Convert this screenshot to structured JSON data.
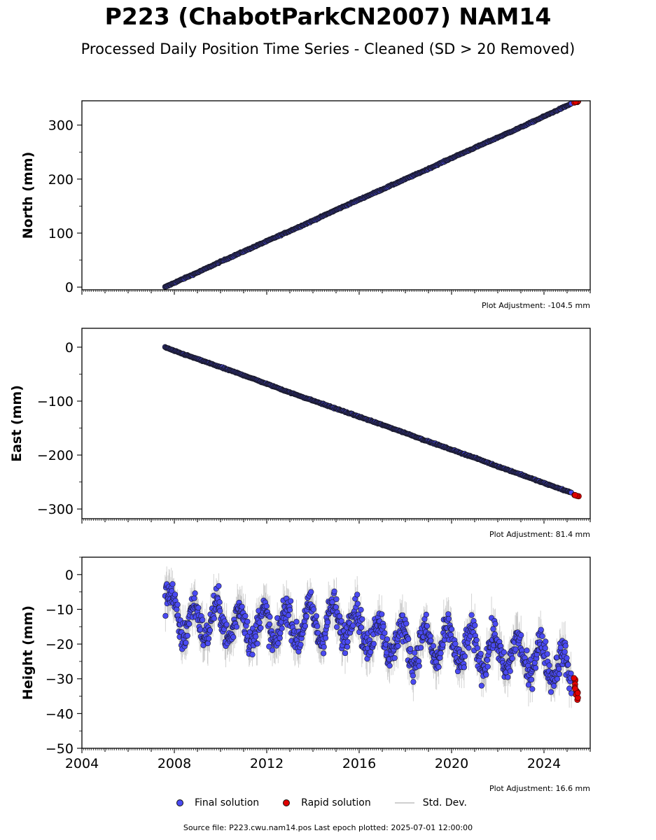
{
  "title": "P223 (ChabotParkCN2007) NAM14",
  "subtitle": "Processed Daily Position Time Series - Cleaned (SD > 20 Removed)",
  "legend": {
    "final": "Final solution",
    "rapid": "Rapid solution",
    "std": "Std. Dev."
  },
  "source_text": "Source file: P223.cwu.nam14.pos  Last epoch plotted: 2025-07-01 12:00:00",
  "colors": {
    "final": "#4a4af2",
    "rapid": "#e00000",
    "std": "#b0b0b0",
    "edge": "#1a1a2a"
  },
  "chart_data": [
    {
      "type": "scatter",
      "ylabel": "North (mm)",
      "xlim": [
        2004.0,
        2026.0
      ],
      "ylim": [
        -5,
        345
      ],
      "yticks": [
        "0",
        "100",
        "200",
        "300"
      ],
      "adjustment": "Plot Adjustment: -104.5 mm",
      "series": [
        {
          "name": "Final solution",
          "x": [
            2007.6,
            2008.0,
            2009.0,
            2010.0,
            2011.0,
            2012.0,
            2013.0,
            2014.0,
            2015.0,
            2016.0,
            2017.0,
            2018.0,
            2019.0,
            2020.0,
            2021.0,
            2022.0,
            2023.0,
            2024.0,
            2025.2
          ],
          "y": [
            0,
            8,
            27,
            47,
            66,
            85,
            104,
            123,
            143,
            162,
            181,
            200,
            219,
            239,
            258,
            277,
            296,
            316,
            340
          ]
        },
        {
          "name": "Rapid solution",
          "x": [
            2025.3,
            2025.4,
            2025.5
          ],
          "y": [
            342,
            343,
            344
          ]
        }
      ]
    },
    {
      "type": "scatter",
      "ylabel": "East (mm)",
      "xlim": [
        2004.0,
        2026.0
      ],
      "ylim": [
        -318,
        35
      ],
      "yticks": [
        "0",
        "−100",
        "−200",
        "−300"
      ],
      "adjustment": "Plot Adjustment: 81.4 mm",
      "series": [
        {
          "name": "Final solution",
          "x": [
            2007.6,
            2008.0,
            2009.0,
            2010.0,
            2011.0,
            2012.0,
            2013.0,
            2014.0,
            2015.0,
            2016.0,
            2017.0,
            2018.0,
            2019.0,
            2020.0,
            2021.0,
            2022.0,
            2023.0,
            2024.0,
            2025.2
          ],
          "y": [
            0,
            -7,
            -22,
            -37,
            -52,
            -68,
            -84,
            -99,
            -114,
            -129,
            -144,
            -159,
            -175,
            -190,
            -205,
            -221,
            -236,
            -252,
            -270
          ]
        },
        {
          "name": "Rapid solution",
          "x": [
            2025.3,
            2025.4,
            2025.5
          ],
          "y": [
            -274,
            -275,
            -276
          ]
        }
      ]
    },
    {
      "type": "scatter",
      "ylabel": "Height (mm)",
      "xlim": [
        2004.0,
        2026.0
      ],
      "ylim": [
        -50,
        5
      ],
      "yticks": [
        "0",
        "−10",
        "−20",
        "−30",
        "−40",
        "−50"
      ],
      "xticks": [
        "2004",
        "2008",
        "2012",
        "2016",
        "2020",
        "2024"
      ],
      "adjustment": "Plot Adjustment: 16.6 mm",
      "series": [
        {
          "name": "Final solution",
          "x": [
            2007.6,
            2008.5,
            2009.5,
            2010.5,
            2011.5,
            2012.5,
            2013.5,
            2014.5,
            2015.5,
            2016.5,
            2017.5,
            2018.5,
            2019.5,
            2020.5,
            2021.5,
            2022.5,
            2023.5,
            2024.5,
            2025.2
          ],
          "y": [
            -8,
            -14,
            -13,
            -14,
            -15,
            -15,
            -14,
            -14,
            -13,
            -17,
            -19,
            -21,
            -20,
            -21,
            -22,
            -23,
            -24,
            -25,
            -30
          ]
        },
        {
          "name": "Rapid solution",
          "x": [
            2025.3,
            2025.4,
            2025.5
          ],
          "y": [
            -31,
            -34,
            -36
          ]
        }
      ]
    }
  ]
}
